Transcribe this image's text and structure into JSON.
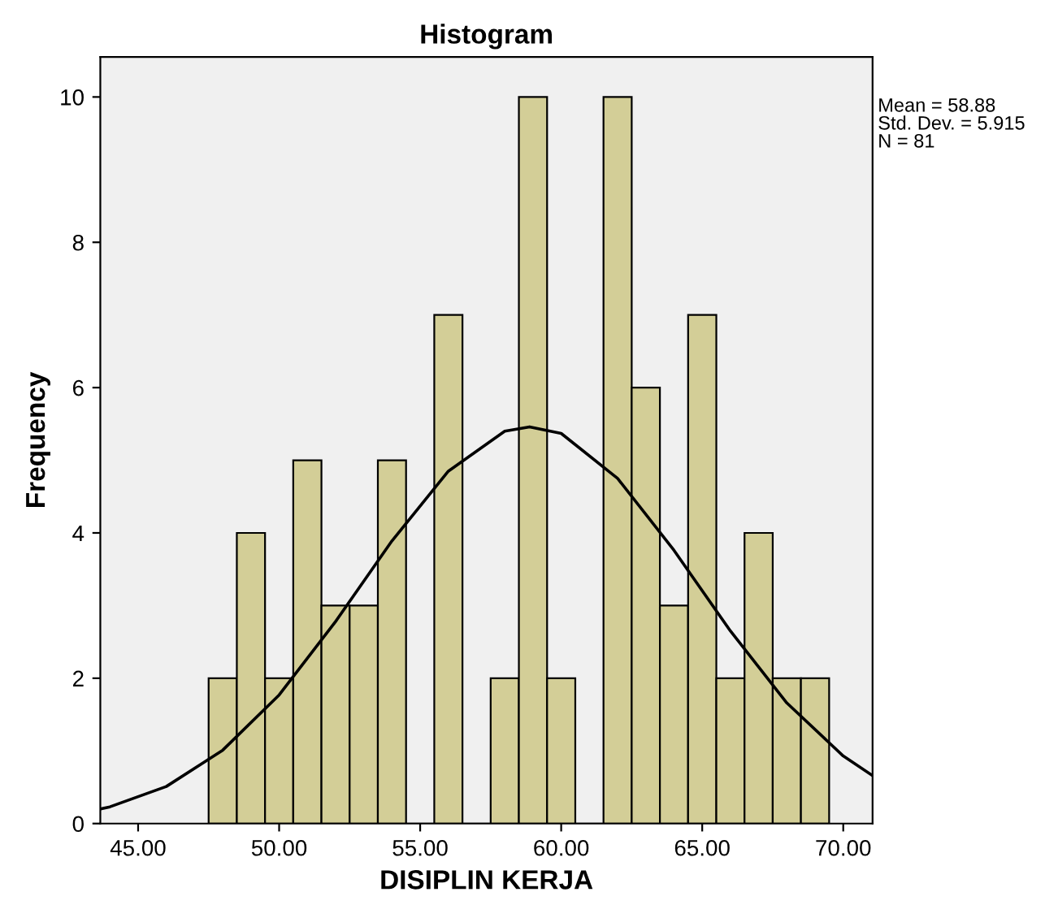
{
  "chart_data": {
    "type": "histogram",
    "title": "Histogram",
    "xlabel": "DISIPLIN KERJA",
    "ylabel": "Frequency",
    "bins": [
      47.5,
      48.5,
      49.5,
      50.5,
      51.5,
      52.5,
      53.5,
      54.5,
      55.5,
      56.5,
      57.5,
      58.5,
      59.5,
      60.5,
      61.5,
      62.5,
      63.5,
      64.5,
      65.5,
      66.5,
      67.5,
      68.5,
      69.5
    ],
    "values": [
      2,
      4,
      2,
      5,
      3,
      3,
      5,
      0,
      7,
      0,
      2,
      10,
      2,
      0,
      10,
      6,
      3,
      7,
      2,
      4,
      2,
      2
    ],
    "color": "#d3ce97",
    "series": [
      {
        "type": "line",
        "color": "#000000",
        "x": [
          43.66,
          44,
          46,
          48,
          50,
          52,
          54,
          56,
          58,
          58.88,
          60,
          62,
          64,
          66,
          68,
          70,
          71.04
        ],
        "values": [
          0.2,
          0.23,
          0.51,
          1.01,
          1.77,
          2.78,
          3.89,
          4.85,
          5.4,
          5.46,
          5.37,
          4.75,
          3.76,
          2.65,
          1.66,
          0.93,
          0.66
        ]
      }
    ],
    "xlim": [
      43.66,
      71.04
    ],
    "xticks": [
      {
        "value": 45,
        "label": "45.00"
      },
      {
        "value": 50,
        "label": "50.00"
      },
      {
        "value": 55,
        "label": "55.00"
      },
      {
        "value": 60,
        "label": "60.00"
      },
      {
        "value": 65,
        "label": "65.00"
      },
      {
        "value": 70,
        "label": "70.00"
      }
    ],
    "ylim": [
      0,
      10.55
    ],
    "yticks": [
      0,
      2,
      4,
      6,
      8,
      10
    ],
    "grid": false,
    "annotations": [
      "Mean = 58.88",
      "Std. Dev. = 5.915",
      "N = 81"
    ]
  }
}
